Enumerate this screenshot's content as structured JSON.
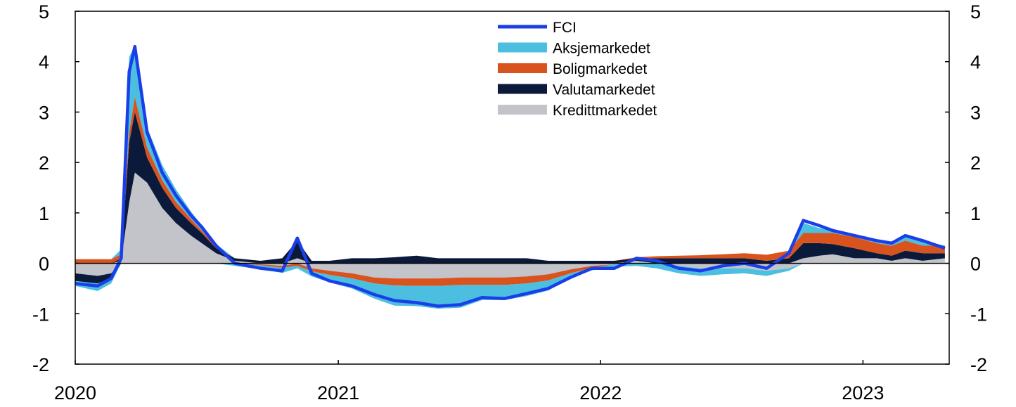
{
  "chart_data": {
    "type": "area",
    "title": "",
    "xlabel": "",
    "ylabel": "",
    "ylim": [
      -2,
      5
    ],
    "xlim": [
      "2020-01-01",
      "2023-05-01"
    ],
    "y_ticks": [
      "-2",
      "-1",
      "0",
      "1",
      "2",
      "3",
      "4",
      "5"
    ],
    "x_ticks": [
      "2020",
      "2021",
      "2022",
      "2023"
    ],
    "grid": false,
    "legend_position": "top-center",
    "colors": {
      "fci": "#1a3fe8",
      "aksje": "#4cbfe0",
      "bolig": "#d9531e",
      "valuta": "#0b1a3a",
      "kreditt": "#c3c4c9"
    },
    "x": [
      "2020-01-01",
      "2020-02-01",
      "2020-02-20",
      "2020-03-05",
      "2020-03-16",
      "2020-03-24",
      "2020-04-10",
      "2020-05-01",
      "2020-05-20",
      "2020-06-10",
      "2020-06-25",
      "2020-07-15",
      "2020-08-10",
      "2020-09-15",
      "2020-10-15",
      "2020-11-05",
      "2020-11-25",
      "2020-12-20",
      "2021-01-20",
      "2021-02-20",
      "2021-03-20",
      "2021-04-20",
      "2021-05-20",
      "2021-06-20",
      "2021-07-20",
      "2021-08-20",
      "2021-09-20",
      "2021-10-20",
      "2021-11-20",
      "2021-12-20",
      "2022-01-20",
      "2022-02-20",
      "2022-03-20",
      "2022-04-20",
      "2022-05-20",
      "2022-06-20",
      "2022-07-20",
      "2022-08-20",
      "2022-09-20",
      "2022-10-10",
      "2022-11-01",
      "2022-11-20",
      "2022-12-20",
      "2023-01-20",
      "2023-02-10",
      "2023-03-01",
      "2023-03-25",
      "2023-04-25"
    ],
    "series": [
      {
        "name": "Kredittmarkedet",
        "values": [
          -0.2,
          -0.25,
          -0.2,
          0.05,
          1.2,
          1.8,
          1.6,
          1.1,
          0.8,
          0.55,
          0.4,
          0.2,
          0.05,
          -0.02,
          -0.05,
          0.1,
          -0.1,
          -0.15,
          -0.2,
          -0.28,
          -0.3,
          -0.3,
          -0.3,
          -0.28,
          -0.28,
          -0.28,
          -0.26,
          -0.22,
          -0.12,
          -0.05,
          -0.02,
          0.05,
          0.0,
          -0.05,
          -0.1,
          -0.1,
          -0.1,
          -0.15,
          -0.1,
          0.1,
          0.15,
          0.18,
          0.1,
          0.1,
          0.05,
          0.1,
          0.05,
          0.1
        ]
      },
      {
        "name": "Valutamarkedet",
        "values": [
          -0.15,
          -0.15,
          -0.1,
          0.05,
          1.2,
          1.2,
          0.5,
          0.4,
          0.3,
          0.25,
          0.2,
          0.1,
          0.05,
          0.05,
          0.1,
          0.35,
          0.05,
          0.05,
          0.1,
          0.1,
          0.12,
          0.15,
          0.1,
          0.1,
          0.1,
          0.1,
          0.1,
          0.05,
          0.05,
          0.05,
          0.05,
          0.05,
          0.1,
          0.1,
          0.1,
          0.1,
          0.1,
          0.05,
          0.1,
          0.3,
          0.25,
          0.2,
          0.2,
          0.1,
          0.1,
          0.15,
          0.15,
          0.1
        ]
      },
      {
        "name": "Boligmarkedet",
        "values": [
          0.08,
          0.08,
          0.08,
          0.08,
          0.2,
          0.3,
          0.2,
          0.15,
          0.12,
          0.08,
          0.05,
          0.03,
          0.0,
          -0.02,
          -0.04,
          -0.05,
          -0.06,
          -0.08,
          -0.1,
          -0.12,
          -0.14,
          -0.15,
          -0.15,
          -0.15,
          -0.15,
          -0.15,
          -0.14,
          -0.12,
          -0.08,
          -0.04,
          0.0,
          0.02,
          0.04,
          0.05,
          0.06,
          0.08,
          0.1,
          0.12,
          0.15,
          0.2,
          0.2,
          0.22,
          0.22,
          0.2,
          0.2,
          0.2,
          0.15,
          0.15
        ]
      },
      {
        "name": "Aksjemarkedet",
        "values": [
          -0.1,
          -0.15,
          -0.1,
          0.1,
          1.5,
          1.0,
          0.4,
          0.3,
          0.25,
          0.15,
          0.1,
          0.05,
          -0.05,
          -0.08,
          -0.1,
          -0.05,
          -0.1,
          -0.15,
          -0.2,
          -0.3,
          -0.4,
          -0.4,
          -0.45,
          -0.45,
          -0.3,
          -0.3,
          -0.25,
          -0.2,
          -0.1,
          -0.05,
          -0.05,
          -0.05,
          -0.1,
          -0.15,
          -0.15,
          -0.12,
          -0.1,
          -0.1,
          -0.05,
          0.2,
          0.1,
          0.05,
          0.05,
          0.05,
          0.05,
          0.1,
          0.1,
          0.0
        ]
      },
      {
        "name": "FCI",
        "values": [
          -0.4,
          -0.45,
          -0.3,
          0.1,
          3.8,
          4.3,
          2.6,
          1.8,
          1.35,
          0.95,
          0.72,
          0.35,
          0.0,
          -0.1,
          -0.15,
          0.5,
          -0.2,
          -0.35,
          -0.45,
          -0.62,
          -0.74,
          -0.78,
          -0.85,
          -0.82,
          -0.68,
          -0.7,
          -0.6,
          -0.5,
          -0.28,
          -0.1,
          -0.1,
          0.1,
          0.05,
          -0.1,
          -0.15,
          -0.05,
          0.0,
          -0.1,
          0.2,
          0.85,
          0.75,
          0.65,
          0.55,
          0.45,
          0.4,
          0.55,
          0.45,
          0.3
        ]
      }
    ]
  }
}
